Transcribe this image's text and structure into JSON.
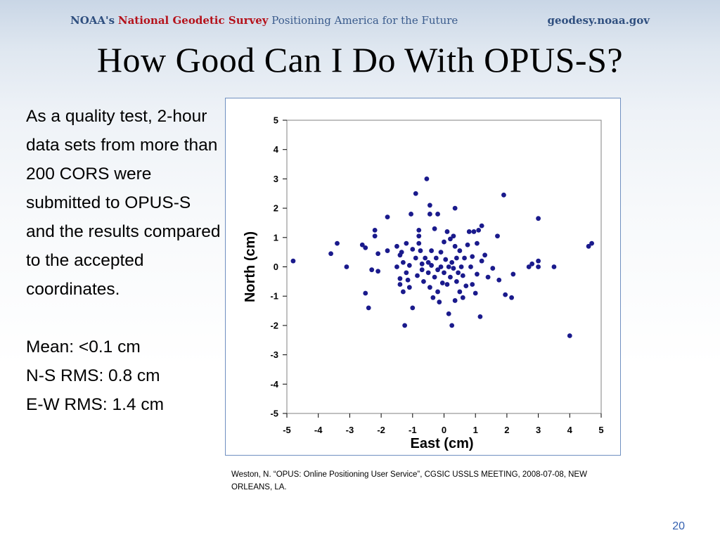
{
  "banner": {
    "agency": "NOAA's",
    "survey": "National Geodetic Survey",
    "tagline": "Positioning America for the Future",
    "website": "geodesy.noaa.gov"
  },
  "slide": {
    "title": "How Good Can I Do With OPUS-S?",
    "body_paragraph": "As a quality test, 2-hour data sets from more than 200 CORS were submitted to OPUS-S and the results compared to the accepted coordinates.",
    "stats": [
      "Mean:  <0.1 cm",
      "N-S RMS: 0.8 cm",
      "E-W RMS: 1.4 cm"
    ],
    "citation": "Weston, N. “OPUS: Online Positioning User Service”,  CGSIC USSLS MEETING, 2008-07-08, NEW ORLEANS, LA.",
    "page_number": "20"
  },
  "colors": {
    "point": "#1a1a8c",
    "chart_border": "#6f8fc0",
    "page_number": "#3561b0",
    "banner_red": "#b5121b",
    "banner_blue": "#2f4f7f"
  },
  "chart_data": {
    "type": "scatter",
    "xlabel": "East (cm)",
    "ylabel": "North (cm)",
    "xlim": [
      -5,
      5
    ],
    "ylim": [
      -5,
      5
    ],
    "xticks": [
      -5,
      -4,
      -3,
      -2,
      -1,
      0,
      1,
      2,
      3,
      4,
      5
    ],
    "yticks": [
      5,
      4,
      3,
      2,
      1,
      0,
      -1,
      -2,
      -3,
      -4,
      -5
    ],
    "grid": false,
    "series": [
      {
        "points": [
          [
            -4.8,
            0.2
          ],
          [
            -3.6,
            0.45
          ],
          [
            -3.4,
            0.8
          ],
          [
            -3.1,
            0.0
          ],
          [
            -2.6,
            0.75
          ],
          [
            -2.5,
            0.65
          ],
          [
            -2.5,
            -0.9
          ],
          [
            -2.4,
            -1.4
          ],
          [
            -2.3,
            -0.1
          ],
          [
            -2.2,
            1.25
          ],
          [
            -2.2,
            1.05
          ],
          [
            -2.1,
            -0.15
          ],
          [
            -2.1,
            0.45
          ],
          [
            -1.8,
            1.7
          ],
          [
            -1.8,
            0.55
          ],
          [
            -1.5,
            0.7
          ],
          [
            -1.5,
            0.0
          ],
          [
            -1.4,
            0.4
          ],
          [
            -1.4,
            -0.4
          ],
          [
            -1.4,
            -0.6
          ],
          [
            -1.35,
            0.5
          ],
          [
            -1.3,
            -0.85
          ],
          [
            -1.3,
            0.15
          ],
          [
            -1.25,
            -2.0
          ],
          [
            -1.2,
            0.8
          ],
          [
            -1.2,
            -0.2
          ],
          [
            -1.15,
            -0.45
          ],
          [
            -1.1,
            -0.7
          ],
          [
            -1.1,
            0.05
          ],
          [
            -1.05,
            1.8
          ],
          [
            -1.0,
            0.6
          ],
          [
            -1.0,
            -1.4
          ],
          [
            -0.9,
            2.5
          ],
          [
            -0.9,
            0.3
          ],
          [
            -0.85,
            -0.3
          ],
          [
            -0.8,
            0.8
          ],
          [
            -0.8,
            1.25
          ],
          [
            -0.8,
            1.05
          ],
          [
            -0.75,
            0.55
          ],
          [
            -0.7,
            0.1
          ],
          [
            -0.7,
            -0.1
          ],
          [
            -0.65,
            -0.5
          ],
          [
            -0.6,
            0.3
          ],
          [
            -0.55,
            3.0
          ],
          [
            -0.5,
            -0.2
          ],
          [
            -0.5,
            0.15
          ],
          [
            -0.45,
            2.1
          ],
          [
            -0.45,
            1.8
          ],
          [
            -0.45,
            -0.7
          ],
          [
            -0.4,
            0.05
          ],
          [
            -0.4,
            0.55
          ],
          [
            -0.35,
            -1.05
          ],
          [
            -0.3,
            1.3
          ],
          [
            -0.3,
            -0.35
          ],
          [
            -0.25,
            0.3
          ],
          [
            -0.2,
            1.8
          ],
          [
            -0.2,
            -0.1
          ],
          [
            -0.2,
            -0.85
          ],
          [
            -0.15,
            -1.2
          ],
          [
            -0.1,
            0.5
          ],
          [
            -0.1,
            0.0
          ],
          [
            -0.05,
            -0.55
          ],
          [
            0.0,
            0.85
          ],
          [
            0.0,
            -0.2
          ],
          [
            0.05,
            0.25
          ],
          [
            0.1,
            1.2
          ],
          [
            0.1,
            -0.6
          ],
          [
            0.15,
            0.0
          ],
          [
            0.15,
            -1.6
          ],
          [
            0.2,
            0.95
          ],
          [
            0.2,
            -0.35
          ],
          [
            0.25,
            0.15
          ],
          [
            0.25,
            -2.0
          ],
          [
            0.3,
            1.05
          ],
          [
            0.3,
            -0.05
          ],
          [
            0.35,
            2.0
          ],
          [
            0.35,
            0.7
          ],
          [
            0.35,
            -1.15
          ],
          [
            0.4,
            0.3
          ],
          [
            0.4,
            -0.5
          ],
          [
            0.45,
            -0.2
          ],
          [
            0.5,
            0.55
          ],
          [
            0.5,
            -0.85
          ],
          [
            0.55,
            0.0
          ],
          [
            0.6,
            -1.05
          ],
          [
            0.6,
            -0.3
          ],
          [
            0.65,
            0.3
          ],
          [
            0.7,
            -0.65
          ],
          [
            0.75,
            0.75
          ],
          [
            0.8,
            1.2
          ],
          [
            0.85,
            0.0
          ],
          [
            0.9,
            0.35
          ],
          [
            0.9,
            -0.6
          ],
          [
            0.95,
            1.2
          ],
          [
            1.0,
            -0.9
          ],
          [
            1.05,
            0.8
          ],
          [
            1.05,
            -0.25
          ],
          [
            1.1,
            1.25
          ],
          [
            1.15,
            -1.7
          ],
          [
            1.2,
            1.4
          ],
          [
            1.2,
            0.2
          ],
          [
            1.3,
            0.4
          ],
          [
            1.4,
            -0.35
          ],
          [
            1.55,
            -0.05
          ],
          [
            1.7,
            1.05
          ],
          [
            1.75,
            -0.45
          ],
          [
            1.9,
            2.45
          ],
          [
            1.95,
            -0.95
          ],
          [
            2.15,
            -1.05
          ],
          [
            2.2,
            -0.25
          ],
          [
            2.7,
            0.0
          ],
          [
            2.8,
            0.1
          ],
          [
            3.0,
            1.65
          ],
          [
            3.0,
            0.2
          ],
          [
            3.0,
            0.0
          ],
          [
            3.5,
            0.0
          ],
          [
            4.0,
            -2.35
          ],
          [
            4.6,
            0.7
          ],
          [
            4.7,
            0.8
          ]
        ]
      }
    ]
  }
}
